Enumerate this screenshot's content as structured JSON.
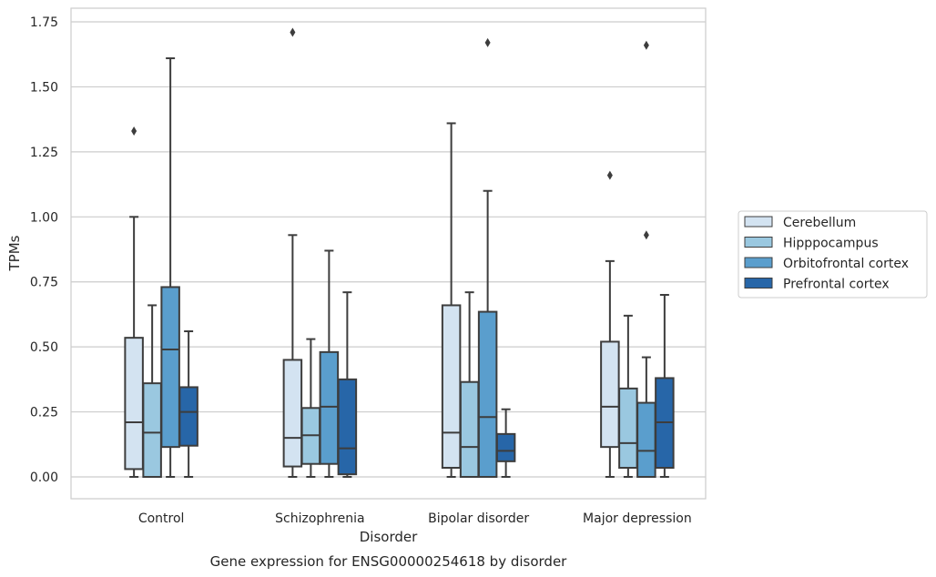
{
  "chart_data": {
    "type": "box",
    "title": "",
    "caption": "Gene expression for ENSG00000254618 by disorder",
    "xlabel": "Disorder",
    "ylabel": "TPMs",
    "ylim": [
      -0.08,
      1.8
    ],
    "yticks": [
      "0.00",
      "0.25",
      "0.50",
      "0.75",
      "1.00",
      "1.25",
      "1.50",
      "1.75"
    ],
    "ytick_values": [
      0,
      0.25,
      0.5,
      0.75,
      1.0,
      1.25,
      1.5,
      1.75
    ],
    "grid": "horizontal",
    "legend_position": "right",
    "categories": [
      "Control",
      "Schizophrenia",
      "Bipolar disorder",
      "Major depression"
    ],
    "series": [
      {
        "name": "Cerebellum",
        "color": "#d3e3f1",
        "boxes": [
          {
            "min": 0.0,
            "q1": 0.03,
            "median": 0.21,
            "q3": 0.535,
            "max": 1.0,
            "outliers": [
              1.33
            ]
          },
          {
            "min": 0.0,
            "q1": 0.04,
            "median": 0.15,
            "q3": 0.45,
            "max": 0.93,
            "outliers": [
              1.71
            ]
          },
          {
            "min": 0.0,
            "q1": 0.035,
            "median": 0.17,
            "q3": 0.66,
            "max": 1.36,
            "outliers": []
          },
          {
            "min": 0.0,
            "q1": 0.115,
            "median": 0.27,
            "q3": 0.52,
            "max": 0.83,
            "outliers": [
              1.16
            ]
          }
        ]
      },
      {
        "name": "Hipppocampus",
        "color": "#9ac8e0",
        "boxes": [
          {
            "min": 0.0,
            "q1": 0.0,
            "median": 0.17,
            "q3": 0.36,
            "max": 0.66,
            "outliers": []
          },
          {
            "min": 0.0,
            "q1": 0.05,
            "median": 0.16,
            "q3": 0.265,
            "max": 0.53,
            "outliers": []
          },
          {
            "min": 0.0,
            "q1": 0.0,
            "median": 0.115,
            "q3": 0.365,
            "max": 0.71,
            "outliers": []
          },
          {
            "min": 0.0,
            "q1": 0.035,
            "median": 0.13,
            "q3": 0.34,
            "max": 0.62,
            "outliers": []
          }
        ]
      },
      {
        "name": "Orbitofrontal cortex",
        "color": "#5a9ecd",
        "boxes": [
          {
            "min": 0.0,
            "q1": 0.115,
            "median": 0.49,
            "q3": 0.73,
            "max": 1.61,
            "outliers": []
          },
          {
            "min": 0.0,
            "q1": 0.05,
            "median": 0.27,
            "q3": 0.48,
            "max": 0.87,
            "outliers": []
          },
          {
            "min": 0.0,
            "q1": 0.0,
            "median": 0.23,
            "q3": 0.635,
            "max": 1.1,
            "outliers": [
              1.67
            ]
          },
          {
            "min": 0.0,
            "q1": 0.0,
            "median": 0.1,
            "q3": 0.285,
            "max": 0.46,
            "outliers": [
              0.93,
              1.66
            ]
          }
        ]
      },
      {
        "name": "Prefrontal cortex",
        "color": "#2766a8",
        "boxes": [
          {
            "min": 0.0,
            "q1": 0.12,
            "median": 0.25,
            "q3": 0.345,
            "max": 0.56,
            "outliers": []
          },
          {
            "min": 0.0,
            "q1": 0.01,
            "median": 0.11,
            "q3": 0.375,
            "max": 0.71,
            "outliers": []
          },
          {
            "min": 0.0,
            "q1": 0.06,
            "median": 0.1,
            "q3": 0.165,
            "max": 0.26,
            "outliers": []
          },
          {
            "min": 0.0,
            "q1": 0.035,
            "median": 0.21,
            "q3": 0.38,
            "max": 0.7,
            "outliers": []
          }
        ]
      }
    ]
  }
}
